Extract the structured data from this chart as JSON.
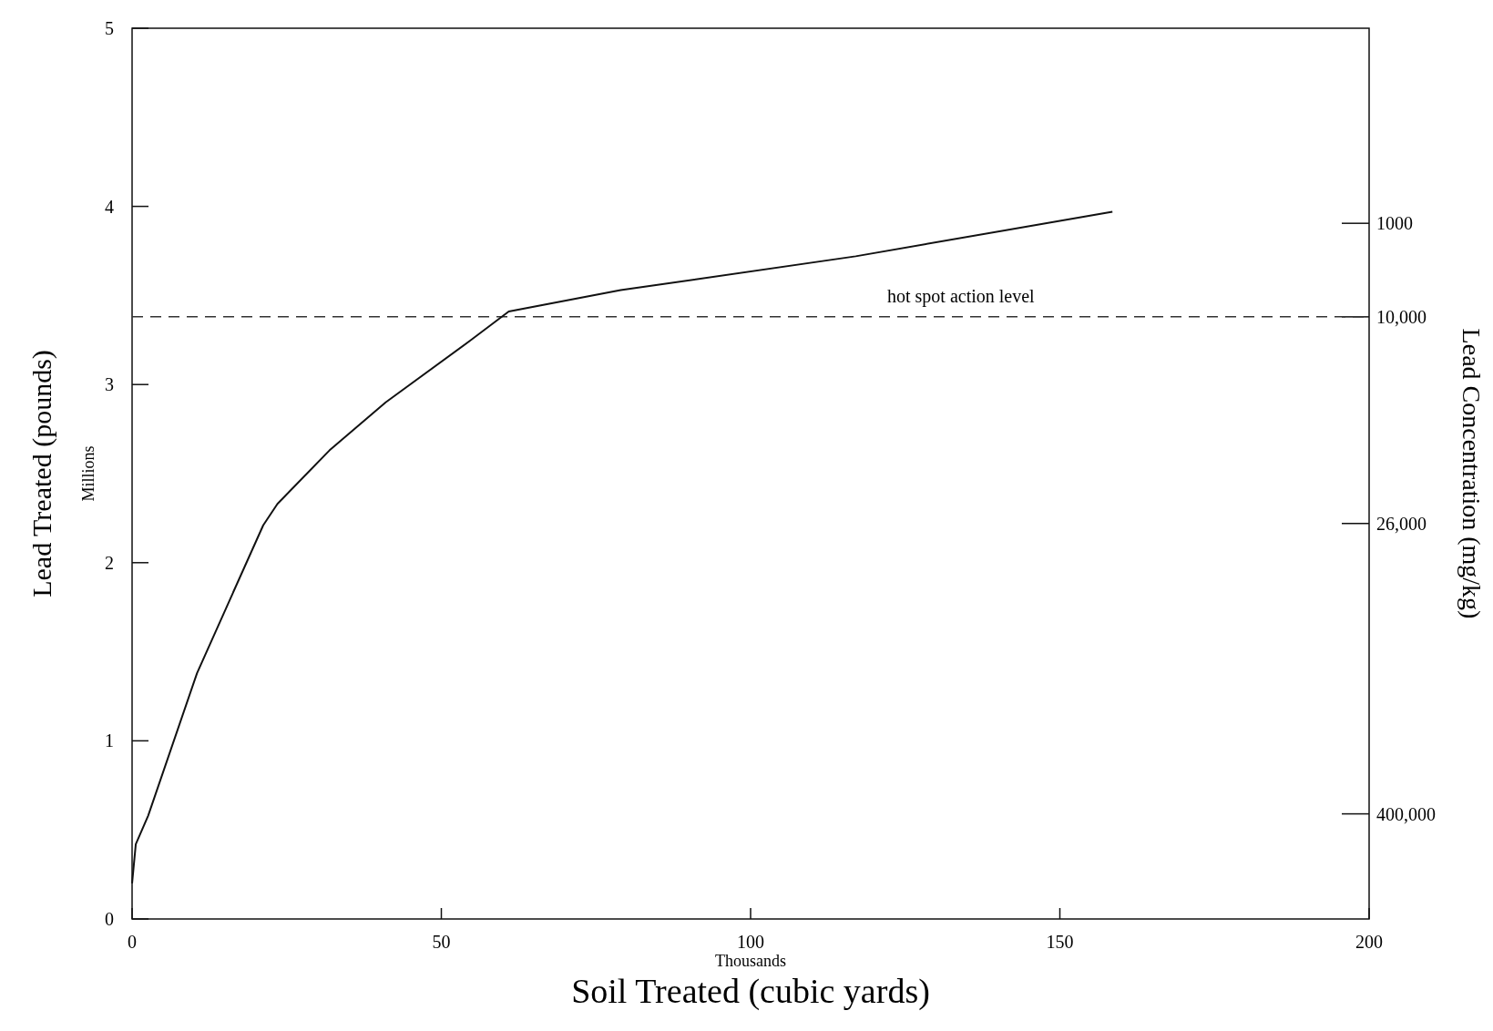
{
  "chart_data": {
    "type": "line",
    "xlabel": "Soil Treated (cubic yards)",
    "ylabel": "Lead Treated (pounds)",
    "y2label": "Lead Concentration (mg/kg)",
    "annotations": [
      "Millions",
      "Thousands",
      "1000",
      "10,000",
      "26,000",
      "400,000"
    ],
    "x": [
      0,
      0.6,
      2.6,
      10.5,
      21.2,
      23.5,
      31.9,
      41,
      54.8,
      60.9,
      79,
      117,
      158.5
    ],
    "series": [
      {
        "color": "#111111",
        "values": [
          0.2,
          0.42,
          0.58,
          1.38,
          2.21,
          2.33,
          2.63,
          2.9,
          3.25,
          3.41,
          3.53,
          3.72,
          3.97
        ]
      }
    ],
    "xlim": [
      0,
      200
    ],
    "xticks": [
      0,
      50,
      100,
      150,
      200
    ],
    "ylim": [
      0,
      5
    ],
    "yticks": [
      0,
      1,
      2,
      3,
      4,
      5
    ],
    "ref_lines": [
      {
        "axis": "y",
        "value": 3.38,
        "label": "hot spot action level",
        "line_style": "dashed",
        "color": "#333333"
      }
    ],
    "grid": false,
    "marker": "none",
    "line_style": "solid"
  }
}
